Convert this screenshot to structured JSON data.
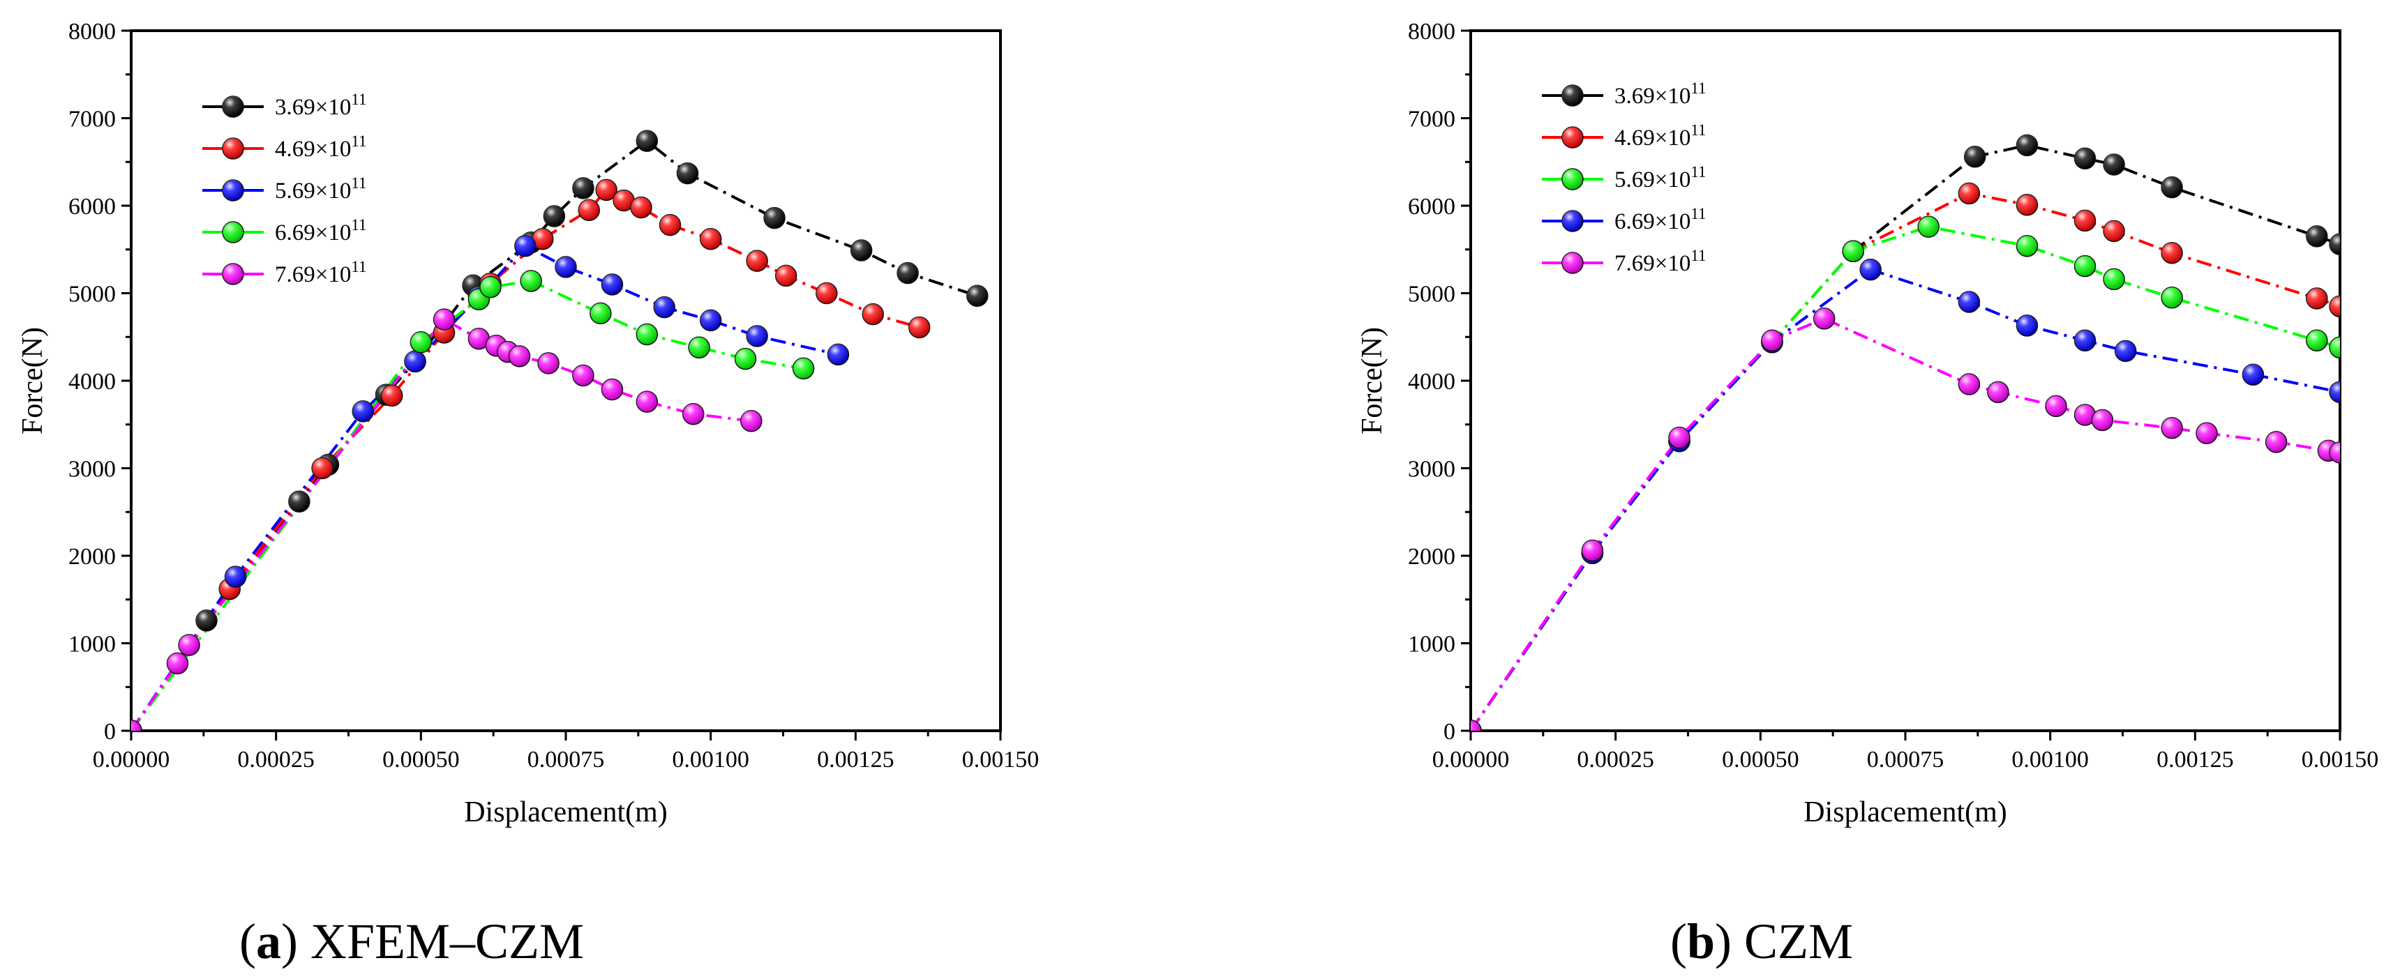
{
  "figure": {
    "captions": [
      {
        "letter": "a",
        "text": "XFEM–CZM"
      },
      {
        "letter": "b",
        "text": "CZM"
      }
    ]
  },
  "chart_data": [
    {
      "type": "line",
      "panel": "(a) XFEM–CZM",
      "xlabel": "Displacement(m)",
      "ylabel": "Force(N)",
      "xlim": [
        0,
        0.0015
      ],
      "ylim": [
        0,
        8000
      ],
      "xticks": [
        "0.00000",
        "0.00025",
        "0.00050",
        "0.00075",
        "0.00100",
        "0.00125",
        "0.00150"
      ],
      "yticks": [
        "0",
        "1000",
        "2000",
        "3000",
        "4000",
        "5000",
        "6000",
        "7000",
        "8000"
      ],
      "legend_position": "top-left",
      "series": [
        {
          "base": "3.69",
          "exp": "11",
          "color": "#000000",
          "x": [
            0,
            0.00013,
            0.00029,
            0.00034,
            0.00044,
            0.00049,
            0.00059,
            0.00069,
            0.00073,
            0.00078,
            0.00089,
            0.00096,
            0.00111,
            0.00126,
            0.00134,
            0.00146
          ],
          "y": [
            0,
            1260,
            2620,
            3040,
            3840,
            4220,
            5090,
            5580,
            5880,
            6200,
            6740,
            6370,
            5860,
            5490,
            5230,
            4970
          ]
        },
        {
          "base": "4.69",
          "exp": "11",
          "color": "#ff0000",
          "x": [
            0,
            0.00017,
            0.00033,
            0.00045,
            0.00054,
            0.00062,
            0.00071,
            0.00079,
            0.00082,
            0.00085,
            0.00088,
            0.00093,
            0.001,
            0.00108,
            0.00113,
            0.0012,
            0.00128,
            0.00136
          ],
          "y": [
            0,
            1620,
            3000,
            3830,
            4550,
            5110,
            5620,
            5950,
            6180,
            6060,
            5980,
            5780,
            5620,
            5370,
            5200,
            5000,
            4760,
            4610
          ]
        },
        {
          "base": "5.69",
          "exp": "11",
          "color": "#0000ff",
          "x": [
            0,
            0.00018,
            0.0004,
            0.00049,
            0.0006,
            0.00068,
            0.00075,
            0.00083,
            0.00092,
            0.001,
            0.00108,
            0.00122
          ],
          "y": [
            0,
            1760,
            3650,
            4220,
            4960,
            5540,
            5300,
            5100,
            4840,
            4690,
            4510,
            4300
          ]
        },
        {
          "base": "6.69",
          "exp": "11",
          "color": "#00ff00",
          "x": [
            0,
            0.0005,
            0.0006,
            0.00062,
            0.00069,
            0.00081,
            0.00089,
            0.00098,
            0.00106,
            0.00116
          ],
          "y": [
            0,
            4440,
            4930,
            5070,
            5140,
            4770,
            4530,
            4380,
            4250,
            4140
          ]
        },
        {
          "base": "7.69",
          "exp": "11",
          "color": "#ff00ff",
          "x": [
            0,
            8e-05,
            0.0001,
            0.00054,
            0.0006,
            0.00063,
            0.00065,
            0.00067,
            0.00072,
            0.00078,
            0.00083,
            0.00089,
            0.00097,
            0.00107
          ],
          "y": [
            0,
            770,
            980,
            4700,
            4480,
            4400,
            4330,
            4280,
            4200,
            4060,
            3900,
            3760,
            3620,
            3540
          ]
        }
      ]
    },
    {
      "type": "line",
      "panel": "(b) CZM",
      "xlabel": "Displacement(m)",
      "ylabel": "Force(N)",
      "xlim": [
        0,
        0.0015
      ],
      "ylim": [
        0,
        8000
      ],
      "xticks": [
        "0.00000",
        "0.00025",
        "0.00050",
        "0.00075",
        "0.00100",
        "0.00125",
        "0.00150"
      ],
      "yticks": [
        "0",
        "1000",
        "2000",
        "3000",
        "4000",
        "5000",
        "6000",
        "7000",
        "8000"
      ],
      "legend_position": "top-left",
      "series": [
        {
          "base": "3.69",
          "exp": "11",
          "color": "#000000",
          "x": [
            0,
            0.00021,
            0.00036,
            0.00052,
            0.00066,
            0.00087,
            0.00096,
            0.00106,
            0.00111,
            0.00121,
            0.00146,
            0.0015
          ],
          "y": [
            0,
            2030,
            3310,
            4440,
            5480,
            6560,
            6690,
            6540,
            6470,
            6210,
            5650,
            5560
          ]
        },
        {
          "base": "4.69",
          "exp": "11",
          "color": "#ff0000",
          "x": [
            0,
            0.00021,
            0.00036,
            0.00052,
            0.00066,
            0.00086,
            0.00096,
            0.00106,
            0.00111,
            0.00121,
            0.00146,
            0.0015
          ],
          "y": [
            0,
            2030,
            3310,
            4440,
            5480,
            6140,
            6010,
            5830,
            5710,
            5460,
            4940,
            4850
          ]
        },
        {
          "base": "5.69",
          "exp": "11",
          "color": "#00ff00",
          "x": [
            0,
            0.00021,
            0.00036,
            0.00052,
            0.00066,
            0.00079,
            0.00096,
            0.00106,
            0.00111,
            0.00121,
            0.00146,
            0.0015
          ],
          "y": [
            0,
            2030,
            3310,
            4440,
            5480,
            5760,
            5540,
            5310,
            5160,
            4950,
            4460,
            4380
          ]
        },
        {
          "base": "6.69",
          "exp": "11",
          "color": "#0000ff",
          "x": [
            0,
            0.00021,
            0.00036,
            0.00052,
            0.00069,
            0.00086,
            0.00096,
            0.00106,
            0.00113,
            0.00135,
            0.0015
          ],
          "y": [
            0,
            2030,
            3310,
            4440,
            5270,
            4900,
            4630,
            4460,
            4340,
            4070,
            3870
          ]
        },
        {
          "base": "7.69",
          "exp": "11",
          "color": "#ff00ff",
          "x": [
            0,
            0.00021,
            0.00036,
            0.00052,
            0.00061,
            0.00086,
            0.00091,
            0.00101,
            0.00106,
            0.00109,
            0.00121,
            0.00127,
            0.00139,
            0.00148,
            0.0015
          ],
          "y": [
            0,
            2060,
            3350,
            4460,
            4710,
            3960,
            3870,
            3710,
            3610,
            3550,
            3460,
            3400,
            3300,
            3200,
            3180
          ]
        }
      ]
    }
  ]
}
